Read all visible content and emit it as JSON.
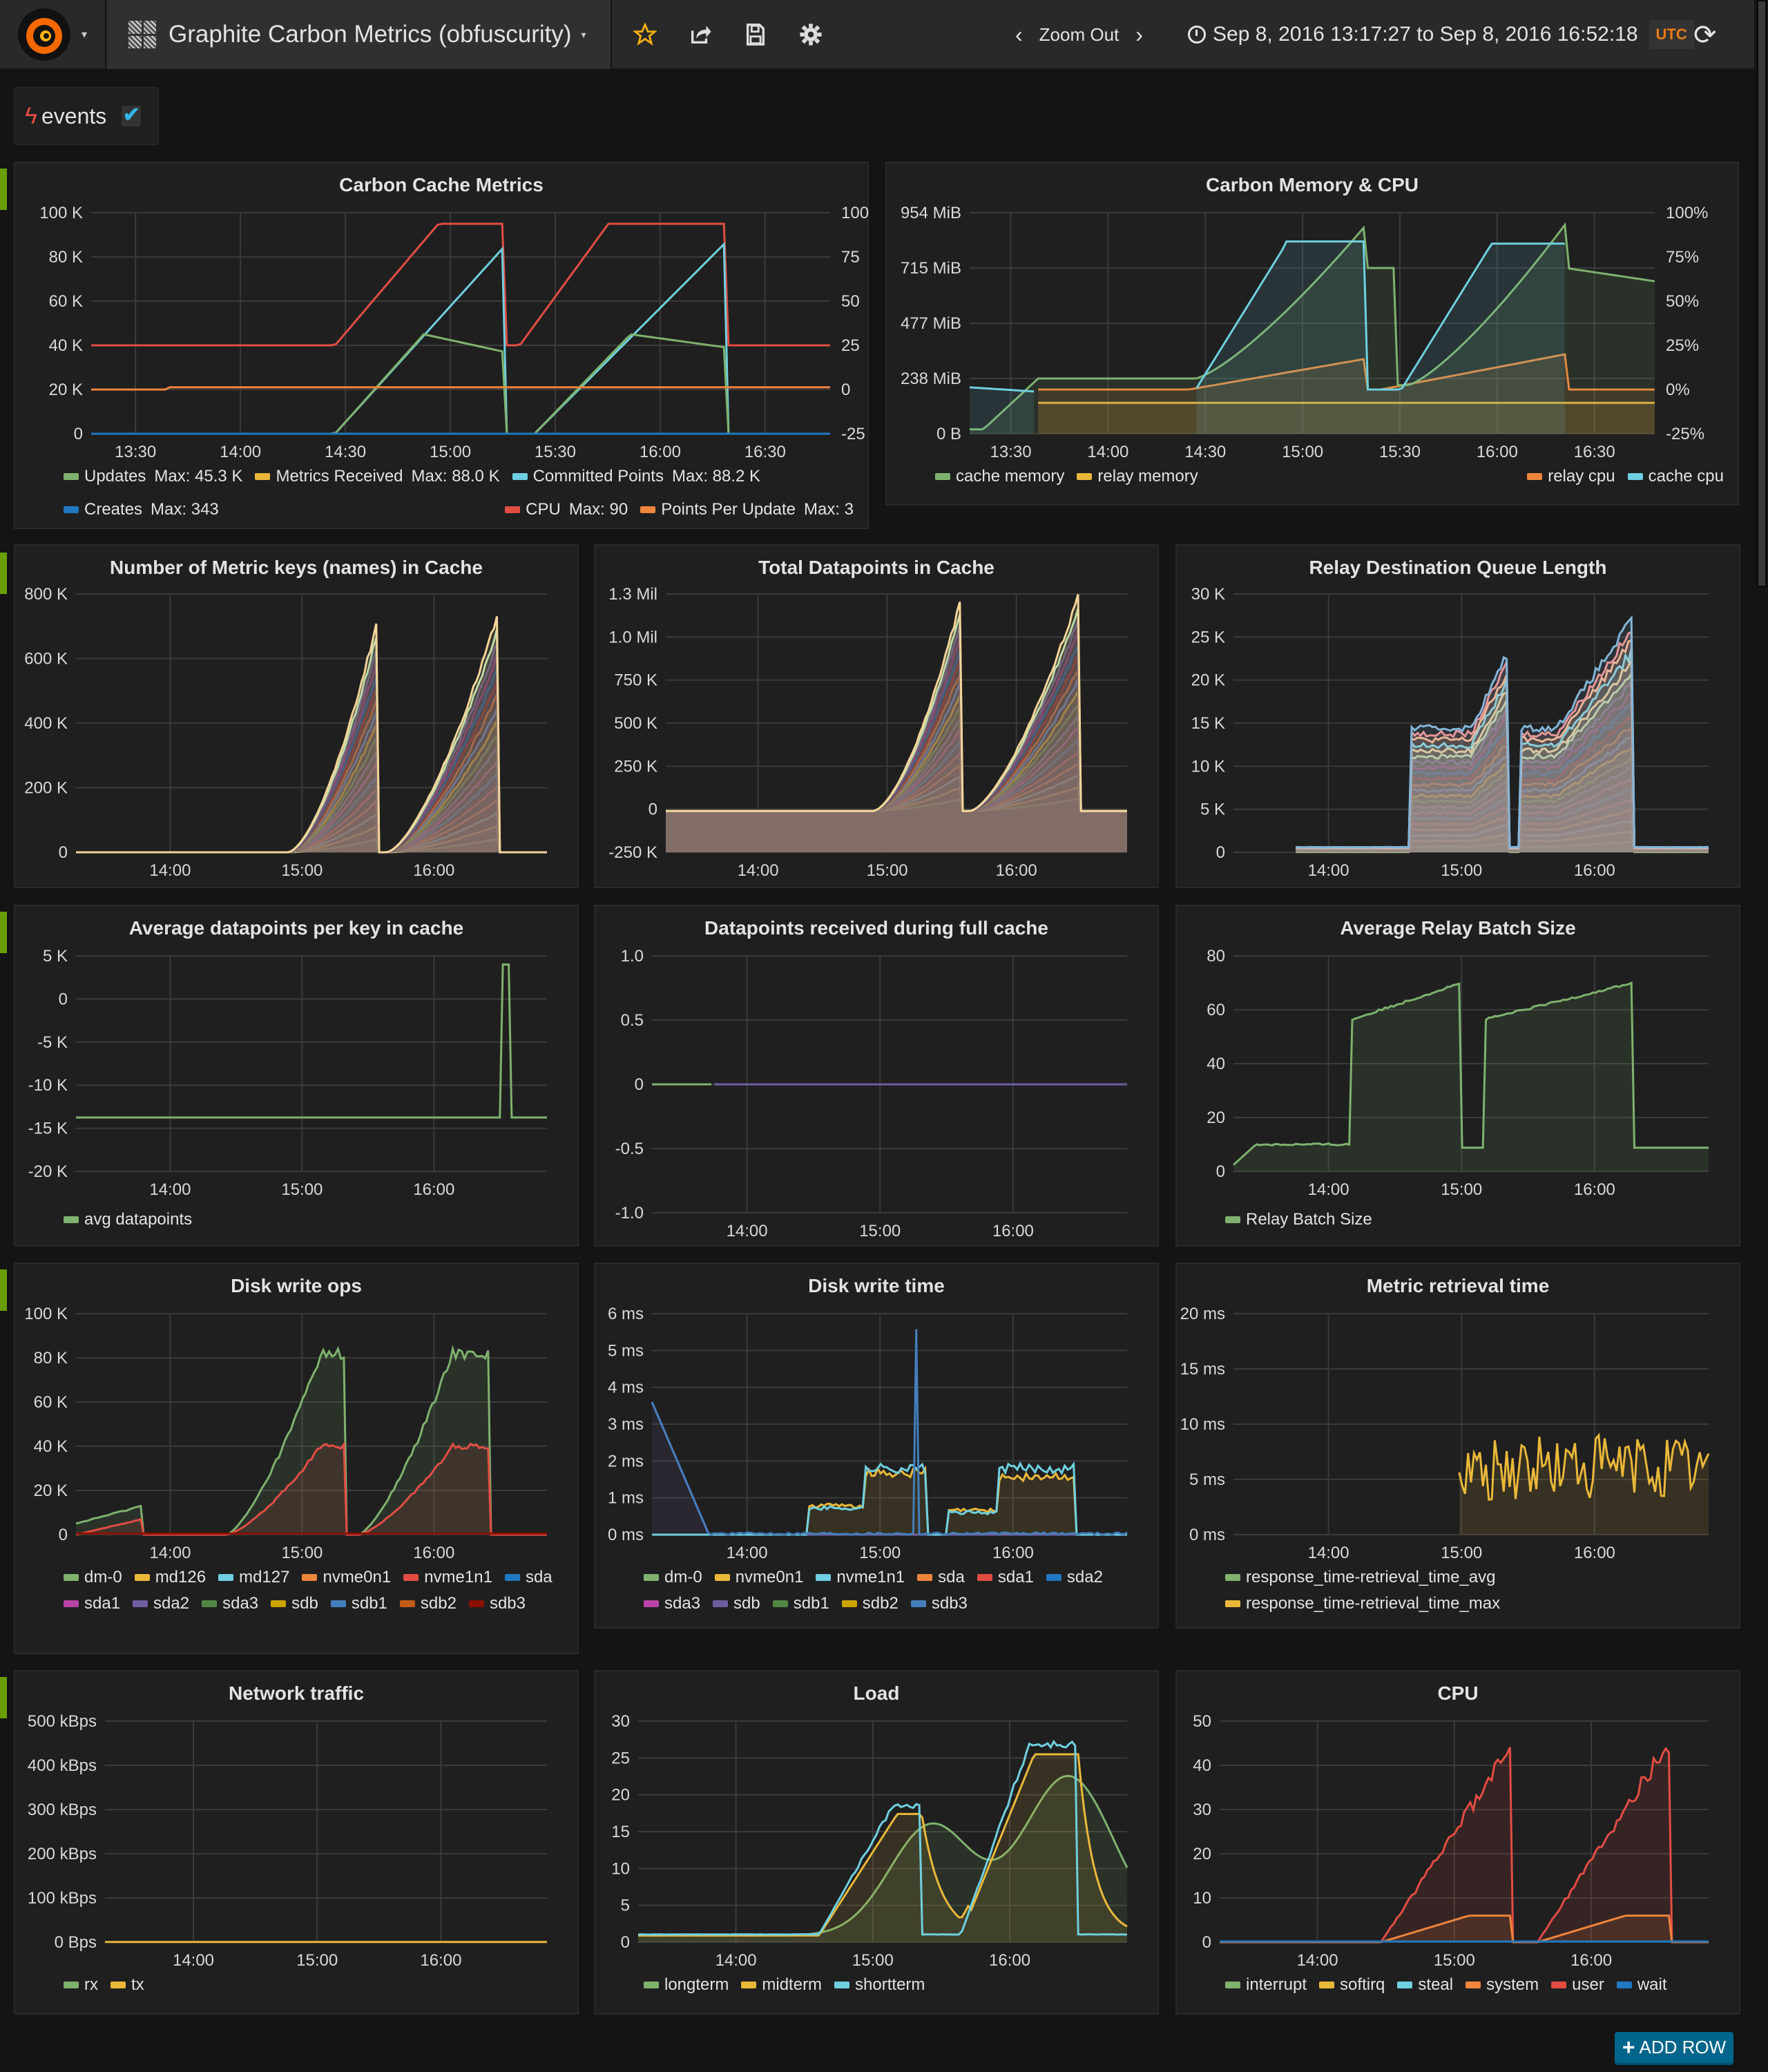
{
  "navbar": {
    "dashboard_title": "Graphite Carbon Metrics (obfuscurity)",
    "zoom_out_label": "Zoom Out",
    "time_range": "Sep 8, 2016 13:17:27 to Sep 8, 2016 16:52:18",
    "timezone_badge": "UTC",
    "icons": [
      "grafana-logo-icon",
      "dashboard-grid-icon",
      "star-icon",
      "share-icon",
      "save-icon",
      "gear-icon",
      "chevron-left-icon",
      "chevron-right-icon",
      "clock-icon",
      "refresh-icon"
    ]
  },
  "annotations": {
    "label": "events",
    "enabled": true
  },
  "add_row_label": "ADD ROW",
  "colors": {
    "accent_row": "#6a9e00",
    "star": "#f7b012",
    "utc": "#eb7b18",
    "add_row": "#00658b"
  },
  "panels": [
    {
      "id": "carbon-cache",
      "title": "Carbon Cache Metrics",
      "y_ticks": [
        "100 K",
        "80 K",
        "60 K",
        "40 K",
        "20 K",
        "0"
      ],
      "y2_ticks": [
        "100",
        "75",
        "50",
        "25",
        "0",
        "-25"
      ],
      "x_ticks": [
        "13:30",
        "14:00",
        "14:30",
        "15:00",
        "15:30",
        "16:00",
        "16:30"
      ],
      "legend": [
        {
          "name": "Updates",
          "value": "Max: 45.3 K",
          "color": "#7eb26d"
        },
        {
          "name": "Metrics Received",
          "value": "Max: 88.0 K",
          "color": "#eab839"
        },
        {
          "name": "Committed Points",
          "value": "Max: 88.2 K",
          "color": "#6ed0e0"
        },
        {
          "name": "Creates",
          "value": "Max: 343",
          "color": "#1f78c1"
        },
        {
          "name": "CPU",
          "value": "Max: 90",
          "color": "#e24d42"
        },
        {
          "name": "Points Per Update",
          "value": "Max: 3",
          "color": "#ef843c"
        }
      ]
    },
    {
      "id": "carbon-mem",
      "title": "Carbon Memory & CPU",
      "y_ticks": [
        "954 MiB",
        "715 MiB",
        "477 MiB",
        "238 MiB",
        "0 B"
      ],
      "y2_ticks": [
        "100%",
        "75%",
        "50%",
        "25%",
        "0%",
        "-25%"
      ],
      "x_ticks": [
        "13:30",
        "14:00",
        "14:30",
        "15:00",
        "15:30",
        "16:00",
        "16:30"
      ],
      "legend": [
        {
          "name": "cache memory",
          "color": "#7eb26d"
        },
        {
          "name": "relay memory",
          "color": "#eab839"
        },
        {
          "name": "relay cpu",
          "color": "#ef843c"
        },
        {
          "name": "cache cpu",
          "color": "#6ed0e0"
        }
      ]
    },
    {
      "id": "metric-keys",
      "title": "Number of Metric keys (names) in Cache",
      "y_ticks": [
        "800 K",
        "600 K",
        "400 K",
        "200 K",
        "0"
      ],
      "x_ticks": [
        "14:00",
        "15:00",
        "16:00"
      ],
      "legend": []
    },
    {
      "id": "total-dp",
      "title": "Total Datapoints in Cache",
      "y_ticks": [
        "1.3 Mil",
        "1.0 Mil",
        "750 K",
        "500 K",
        "250 K",
        "0",
        "-250 K"
      ],
      "x_ticks": [
        "14:00",
        "15:00",
        "16:00"
      ],
      "legend": []
    },
    {
      "id": "relay-queue",
      "title": "Relay Destination Queue Length",
      "y_ticks": [
        "30 K",
        "25 K",
        "20 K",
        "15 K",
        "10 K",
        "5 K",
        "0"
      ],
      "x_ticks": [
        "14:00",
        "15:00",
        "16:00"
      ],
      "legend": []
    },
    {
      "id": "avg-dp",
      "title": "Average datapoints per key in cache",
      "y_ticks": [
        "5 K",
        "0",
        "-5 K",
        "-10 K",
        "-15 K",
        "-20 K"
      ],
      "x_ticks": [
        "14:00",
        "15:00",
        "16:00"
      ],
      "legend": [
        {
          "name": "avg datapoints",
          "color": "#7eb26d"
        }
      ]
    },
    {
      "id": "dp-full",
      "title": "Datapoints received during full cache",
      "y_ticks": [
        "1.0",
        "0.5",
        "0",
        "-0.5",
        "-1.0"
      ],
      "x_ticks": [
        "14:00",
        "15:00",
        "16:00"
      ],
      "legend": []
    },
    {
      "id": "relay-batch",
      "title": "Average Relay Batch Size",
      "y_ticks": [
        "80",
        "60",
        "40",
        "20",
        "0"
      ],
      "x_ticks": [
        "14:00",
        "15:00",
        "16:00"
      ],
      "legend": [
        {
          "name": "Relay Batch Size",
          "color": "#7eb26d"
        }
      ]
    },
    {
      "id": "disk-ops",
      "title": "Disk write ops",
      "y_ticks": [
        "100 K",
        "80 K",
        "60 K",
        "40 K",
        "20 K",
        "0"
      ],
      "x_ticks": [
        "14:00",
        "15:00",
        "16:00"
      ],
      "legend": [
        {
          "name": "dm-0",
          "color": "#7eb26d"
        },
        {
          "name": "md126",
          "color": "#eab839"
        },
        {
          "name": "md127",
          "color": "#6ed0e0"
        },
        {
          "name": "nvme0n1",
          "color": "#ef843c"
        },
        {
          "name": "nvme1n1",
          "color": "#e24d42"
        },
        {
          "name": "sda",
          "color": "#1f78c1"
        },
        {
          "name": "sda1",
          "color": "#ba43a9"
        },
        {
          "name": "sda2",
          "color": "#705da0"
        },
        {
          "name": "sda3",
          "color": "#508642"
        },
        {
          "name": "sdb",
          "color": "#cca300"
        },
        {
          "name": "sdb1",
          "color": "#447ebc"
        },
        {
          "name": "sdb2",
          "color": "#c15c17"
        },
        {
          "name": "sdb3",
          "color": "#890f02"
        }
      ]
    },
    {
      "id": "disk-time",
      "title": "Disk write time",
      "y_ticks": [
        "6 ms",
        "5 ms",
        "4 ms",
        "3 ms",
        "2 ms",
        "1 ms",
        "0 ms"
      ],
      "x_ticks": [
        "14:00",
        "15:00",
        "16:00"
      ],
      "legend": [
        {
          "name": "dm-0",
          "color": "#7eb26d"
        },
        {
          "name": "nvme0n1",
          "color": "#eab839"
        },
        {
          "name": "nvme1n1",
          "color": "#6ed0e0"
        },
        {
          "name": "sda",
          "color": "#ef843c"
        },
        {
          "name": "sda1",
          "color": "#e24d42"
        },
        {
          "name": "sda2",
          "color": "#1f78c1"
        },
        {
          "name": "sda3",
          "color": "#ba43a9"
        },
        {
          "name": "sdb",
          "color": "#705da0"
        },
        {
          "name": "sdb1",
          "color": "#508642"
        },
        {
          "name": "sdb2",
          "color": "#cca300"
        },
        {
          "name": "sdb3",
          "color": "#447ebc"
        }
      ]
    },
    {
      "id": "retrieval",
      "title": "Metric retrieval time",
      "y_ticks": [
        "20 ms",
        "15 ms",
        "10 ms",
        "5 ms",
        "0 ms"
      ],
      "x_ticks": [
        "14:00",
        "15:00",
        "16:00"
      ],
      "legend": [
        {
          "name": "response_time-retrieval_time_avg",
          "color": "#7eb26d"
        },
        {
          "name": "response_time-retrieval_time_max",
          "color": "#eab839"
        }
      ]
    },
    {
      "id": "network",
      "title": "Network traffic",
      "y_ticks": [
        "500 kBps",
        "400 kBps",
        "300 kBps",
        "200 kBps",
        "100 kBps",
        "0 Bps"
      ],
      "x_ticks": [
        "14:00",
        "15:00",
        "16:00"
      ],
      "legend": [
        {
          "name": "rx",
          "color": "#7eb26d"
        },
        {
          "name": "tx",
          "color": "#eab839"
        }
      ]
    },
    {
      "id": "load",
      "title": "Load",
      "y_ticks": [
        "30",
        "25",
        "20",
        "15",
        "10",
        "5",
        "0"
      ],
      "x_ticks": [
        "14:00",
        "15:00",
        "16:00"
      ],
      "legend": [
        {
          "name": "longterm",
          "color": "#7eb26d"
        },
        {
          "name": "midterm",
          "color": "#eab839"
        },
        {
          "name": "shortterm",
          "color": "#6ed0e0"
        }
      ]
    },
    {
      "id": "cpu",
      "title": "CPU",
      "y_ticks": [
        "50",
        "40",
        "30",
        "20",
        "10",
        "0"
      ],
      "x_ticks": [
        "14:00",
        "15:00",
        "16:00"
      ],
      "legend": [
        {
          "name": "interrupt",
          "color": "#7eb26d"
        },
        {
          "name": "softirq",
          "color": "#eab839"
        },
        {
          "name": "steal",
          "color": "#6ed0e0"
        },
        {
          "name": "system",
          "color": "#ef843c"
        },
        {
          "name": "user",
          "color": "#e24d42"
        },
        {
          "name": "wait",
          "color": "#1f78c1"
        }
      ]
    }
  ]
}
